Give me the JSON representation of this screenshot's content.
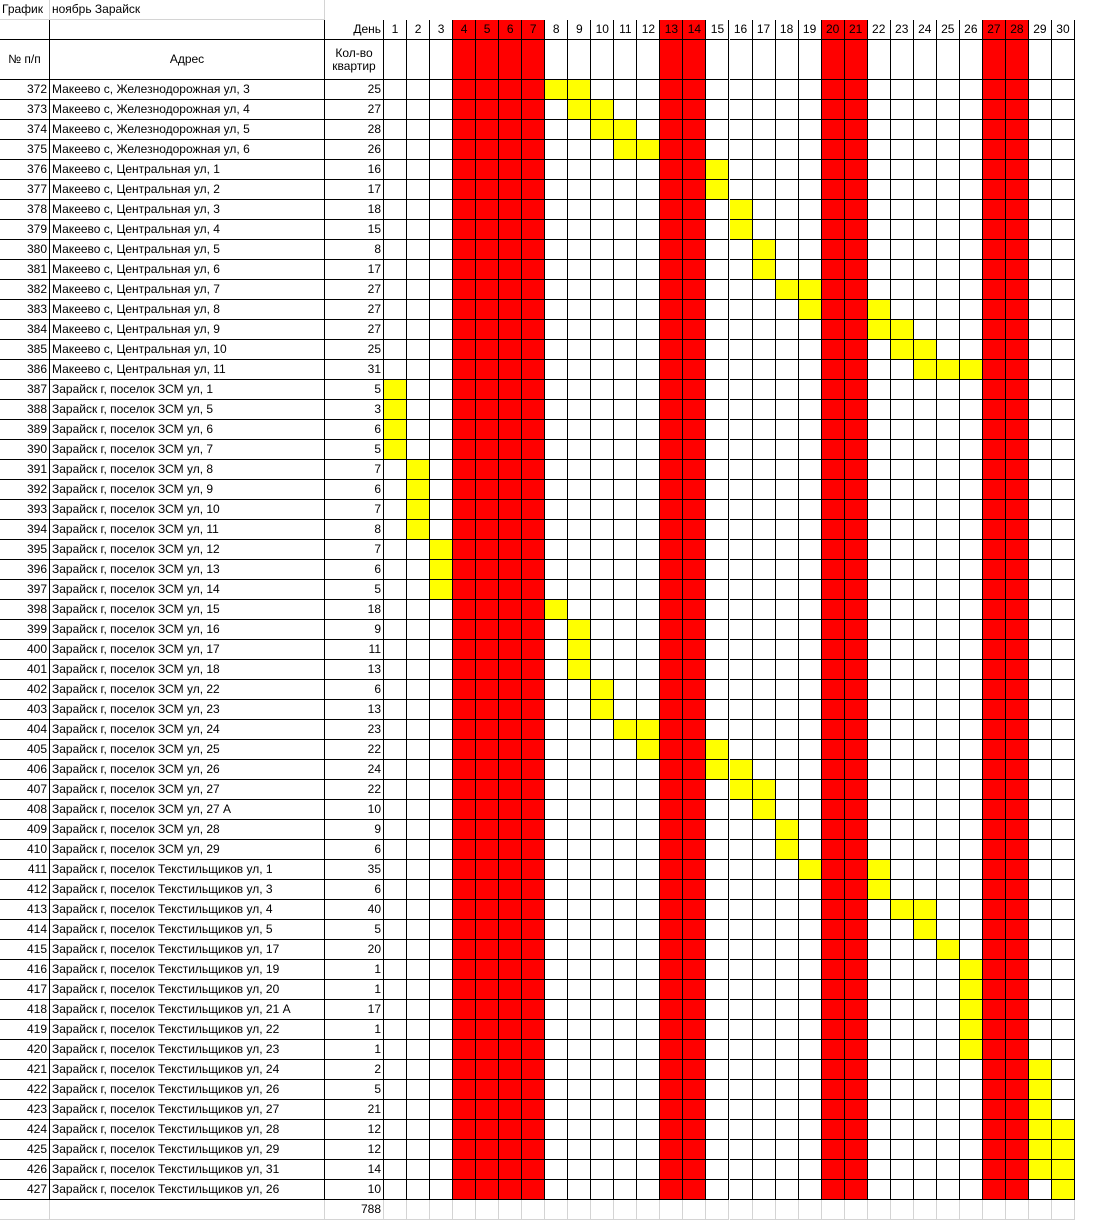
{
  "title": "График",
  "subtitle": "ноябрь Зарайск",
  "day_label": "День",
  "days": [
    1,
    2,
    3,
    4,
    5,
    6,
    7,
    8,
    9,
    10,
    11,
    12,
    13,
    14,
    15,
    16,
    17,
    18,
    19,
    20,
    21,
    22,
    23,
    24,
    25,
    26,
    27,
    28,
    29,
    30
  ],
  "weekend_days": [
    4,
    5,
    6,
    7,
    13,
    14,
    20,
    21,
    27,
    28
  ],
  "columns": [
    "№ п/п",
    "Адрес",
    "Кол-во квартир"
  ],
  "rows": [
    {
      "n": 372,
      "address": "Макеево с, Железнодорожная ул, 3",
      "count": 25,
      "days": [
        8,
        9
      ]
    },
    {
      "n": 373,
      "address": "Макеево с, Железнодорожная ул, 4",
      "count": 27,
      "days": [
        9,
        10
      ]
    },
    {
      "n": 374,
      "address": "Макеево с, Железнодорожная ул, 5",
      "count": 28,
      "days": [
        10,
        11
      ]
    },
    {
      "n": 375,
      "address": "Макеево с, Железнодорожная ул, 6",
      "count": 26,
      "days": [
        11,
        12
      ]
    },
    {
      "n": 376,
      "address": "Макеево с, Центральная ул, 1",
      "count": 16,
      "days": [
        15
      ]
    },
    {
      "n": 377,
      "address": "Макеево с, Центральная ул, 2",
      "count": 17,
      "days": [
        15
      ]
    },
    {
      "n": 378,
      "address": "Макеево с, Центральная ул, 3",
      "count": 18,
      "days": [
        16
      ]
    },
    {
      "n": 379,
      "address": "Макеево с, Центральная ул, 4",
      "count": 15,
      "days": [
        16
      ]
    },
    {
      "n": 380,
      "address": "Макеево с, Центральная ул, 5",
      "count": 8,
      "days": [
        17
      ]
    },
    {
      "n": 381,
      "address": "Макеево с, Центральная ул, 6",
      "count": 17,
      "days": [
        17
      ]
    },
    {
      "n": 382,
      "address": "Макеево с, Центральная ул, 7",
      "count": 27,
      "days": [
        18,
        19
      ]
    },
    {
      "n": 383,
      "address": "Макеево с, Центральная ул, 8",
      "count": 27,
      "days": [
        19,
        22
      ]
    },
    {
      "n": 384,
      "address": "Макеево с, Центральная ул, 9",
      "count": 27,
      "days": [
        22,
        23
      ]
    },
    {
      "n": 385,
      "address": "Макеево с, Центральная ул, 10",
      "count": 25,
      "days": [
        23,
        24
      ]
    },
    {
      "n": 386,
      "address": "Макеево с, Центральная ул, 11",
      "count": 31,
      "days": [
        24,
        25,
        26
      ]
    },
    {
      "n": 387,
      "address": "Зарайск г, поселок ЗСМ ул, 1",
      "count": 5,
      "days": [
        1
      ]
    },
    {
      "n": 388,
      "address": "Зарайск г, поселок ЗСМ ул, 5",
      "count": 3,
      "days": [
        1
      ]
    },
    {
      "n": 389,
      "address": "Зарайск г, поселок ЗСМ ул, 6",
      "count": 6,
      "days": [
        1
      ]
    },
    {
      "n": 390,
      "address": "Зарайск г, поселок ЗСМ ул, 7",
      "count": 5,
      "days": [
        1
      ]
    },
    {
      "n": 391,
      "address": "Зарайск г, поселок ЗСМ ул, 8",
      "count": 7,
      "days": [
        2
      ]
    },
    {
      "n": 392,
      "address": "Зарайск г, поселок ЗСМ ул, 9",
      "count": 6,
      "days": [
        2
      ]
    },
    {
      "n": 393,
      "address": "Зарайск г, поселок ЗСМ ул, 10",
      "count": 7,
      "days": [
        2
      ]
    },
    {
      "n": 394,
      "address": "Зарайск г, поселок ЗСМ ул, 11",
      "count": 8,
      "days": [
        2
      ]
    },
    {
      "n": 395,
      "address": "Зарайск г, поселок ЗСМ ул, 12",
      "count": 7,
      "days": [
        3
      ]
    },
    {
      "n": 396,
      "address": "Зарайск г, поселок ЗСМ ул, 13",
      "count": 6,
      "days": [
        3
      ]
    },
    {
      "n": 397,
      "address": "Зарайск г, поселок ЗСМ ул, 14",
      "count": 5,
      "days": [
        3
      ]
    },
    {
      "n": 398,
      "address": "Зарайск г, поселок ЗСМ ул, 15",
      "count": 18,
      "days": [
        8
      ]
    },
    {
      "n": 399,
      "address": "Зарайск г, поселок ЗСМ ул, 16",
      "count": 9,
      "days": [
        9
      ]
    },
    {
      "n": 400,
      "address": "Зарайск г, поселок ЗСМ ул, 17",
      "count": 11,
      "days": [
        9
      ]
    },
    {
      "n": 401,
      "address": "Зарайск г, поселок ЗСМ ул, 18",
      "count": 13,
      "days": [
        9
      ]
    },
    {
      "n": 402,
      "address": "Зарайск г, поселок ЗСМ ул, 22",
      "count": 6,
      "days": [
        10
      ]
    },
    {
      "n": 403,
      "address": "Зарайск г, поселок ЗСМ ул, 23",
      "count": 13,
      "days": [
        10
      ]
    },
    {
      "n": 404,
      "address": "Зарайск г, поселок ЗСМ ул, 24",
      "count": 23,
      "days": [
        11,
        12
      ]
    },
    {
      "n": 405,
      "address": "Зарайск г, поселок ЗСМ ул, 25",
      "count": 22,
      "days": [
        12,
        15
      ]
    },
    {
      "n": 406,
      "address": "Зарайск г, поселок ЗСМ ул, 26",
      "count": 24,
      "days": [
        15,
        16
      ]
    },
    {
      "n": 407,
      "address": "Зарайск г, поселок ЗСМ ул, 27",
      "count": 22,
      "days": [
        16,
        17
      ]
    },
    {
      "n": 408,
      "address": "Зарайск г, поселок ЗСМ ул, 27 А",
      "count": 10,
      "days": [
        17
      ]
    },
    {
      "n": 409,
      "address": "Зарайск г, поселок ЗСМ ул, 28",
      "count": 9,
      "days": [
        18
      ]
    },
    {
      "n": 410,
      "address": "Зарайск г, поселок ЗСМ ул, 29",
      "count": 6,
      "days": [
        18
      ]
    },
    {
      "n": 411,
      "address": "Зарайск г, поселок Текстильщиков ул, 1",
      "count": 35,
      "days": [
        19,
        22
      ]
    },
    {
      "n": 412,
      "address": "Зарайск г, поселок Текстильщиков ул, 3",
      "count": 6,
      "days": [
        22
      ]
    },
    {
      "n": 413,
      "address": "Зарайск г, поселок Текстильщиков ул, 4",
      "count": 40,
      "days": [
        23,
        24
      ]
    },
    {
      "n": 414,
      "address": "Зарайск г, поселок Текстильщиков ул, 5",
      "count": 5,
      "days": [
        24
      ]
    },
    {
      "n": 415,
      "address": "Зарайск г, поселок Текстильщиков ул, 17",
      "count": 20,
      "days": [
        25
      ]
    },
    {
      "n": 416,
      "address": "Зарайск г, поселок Текстильщиков ул, 19",
      "count": 1,
      "days": [
        26
      ]
    },
    {
      "n": 417,
      "address": "Зарайск г, поселок Текстильщиков ул, 20",
      "count": 1,
      "days": [
        26
      ]
    },
    {
      "n": 418,
      "address": "Зарайск г, поселок Текстильщиков ул, 21 А",
      "count": 17,
      "days": [
        26
      ]
    },
    {
      "n": 419,
      "address": "Зарайск г, поселок Текстильщиков ул, 22",
      "count": 1,
      "days": [
        26
      ]
    },
    {
      "n": 420,
      "address": "Зарайск г, поселок Текстильщиков ул, 23",
      "count": 1,
      "days": [
        26
      ]
    },
    {
      "n": 421,
      "address": "Зарайск г, поселок Текстильщиков ул, 24",
      "count": 2,
      "days": [
        29
      ]
    },
    {
      "n": 422,
      "address": "Зарайск г, поселок Текстильщиков ул, 26",
      "count": 5,
      "days": [
        29
      ]
    },
    {
      "n": 423,
      "address": "Зарайск г, поселок Текстильщиков ул, 27",
      "count": 21,
      "days": [
        29
      ]
    },
    {
      "n": 424,
      "address": "Зарайск г, поселок Текстильщиков ул, 28",
      "count": 12,
      "days": [
        29,
        30
      ]
    },
    {
      "n": 425,
      "address": "Зарайск г, поселок Текстильщиков ул, 29",
      "count": 12,
      "days": [
        29,
        30
      ]
    },
    {
      "n": 426,
      "address": "Зарайск г, поселок Текстильщиков ул, 31",
      "count": 14,
      "days": [
        29,
        30
      ]
    },
    {
      "n": 427,
      "address": "Зарайск г, поселок Текстильщиков ул, 26",
      "count": 10,
      "days": [
        30
      ]
    }
  ],
  "total": 788
}
